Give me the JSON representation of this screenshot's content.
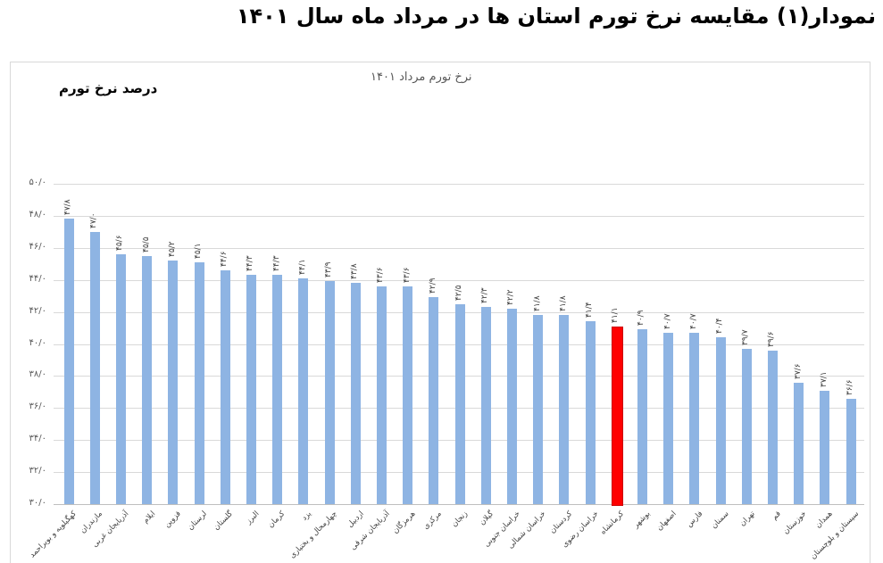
{
  "header": {
    "title": "نمودار(۱) مقایسه نرخ تورم استان ها در مرداد  ماه سال ۱۴۰۱"
  },
  "chart_data": {
    "type": "bar",
    "title": "نرخ تورم  مرداد ۱۴۰۱",
    "ylabel": "درصد نرخ تورم",
    "xlabel": "",
    "ylim": [
      30,
      50
    ],
    "yticks": [
      30,
      32,
      34,
      36,
      38,
      40,
      42,
      44,
      46,
      48,
      50
    ],
    "ytick_labels": [
      "۳۰/۰",
      "۳۲/۰",
      "۳۴/۰",
      "۳۶/۰",
      "۳۸/۰",
      "۴۰/۰",
      "۴۲/۰",
      "۴۴/۰",
      "۴۶/۰",
      "۴۸/۰",
      "۵۰/۰"
    ],
    "grid": true,
    "legend": false,
    "highlight_color": "#ff0000",
    "bar_color": "#8eb4e3",
    "highlight_index": 21,
    "categories": [
      "کهگیلویه و بویراحمد",
      "مازندران",
      "آذربایجان غربی",
      "ایلام",
      "قزوین",
      "لرستان",
      "گلستان",
      "البرز",
      "کرمان",
      "یزد",
      "چهارمحال و بختیاری",
      "اردبیل",
      "آذربایجان شرقی",
      "هرمزگان",
      "مرکزی",
      "زنجان",
      "گیلان",
      "خراسان جنوبی",
      "خراسان شمالی",
      "کردستان",
      "خراسان رضوی",
      "کرمانشاه",
      "بوشهر",
      "اصفهان",
      "فارس",
      "سمنان",
      "تهران",
      "قم",
      "خوزستان",
      "همدان",
      "سیستان و بلوچستان"
    ],
    "values": [
      47.8,
      47.0,
      45.6,
      45.5,
      45.2,
      45.1,
      44.6,
      44.3,
      44.3,
      44.1,
      43.9,
      43.8,
      43.6,
      43.6,
      42.9,
      42.5,
      42.3,
      42.2,
      41.8,
      41.8,
      41.4,
      41.1,
      40.9,
      40.7,
      40.7,
      40.4,
      39.7,
      39.6,
      37.6,
      37.1,
      36.6
    ],
    "value_labels": [
      "۴۷/۸",
      "۴۷/۰",
      "۴۵/۶",
      "۴۵/۵",
      "۴۵/۲",
      "۴۵/۱",
      "۴۴/۶",
      "۴۴/۳",
      "۴۴/۳",
      "۴۴/۱",
      "۴۳/۹",
      "۴۳/۸",
      "۴۳/۶",
      "۴۳/۶",
      "۴۲/۹",
      "۴۲/۵",
      "۴۲/۳",
      "۴۲/۲",
      "۴۱/۸",
      "۴۱/۸",
      "۴۱/۴",
      "۴۱/۱",
      "۴۰/۹",
      "۴۰/۷",
      "۴۰/۷",
      "۴۰/۴",
      "۳۹/۷",
      "۳۹/۶",
      "۳۷/۶",
      "۳۷/۱",
      "۳۶/۶"
    ]
  }
}
